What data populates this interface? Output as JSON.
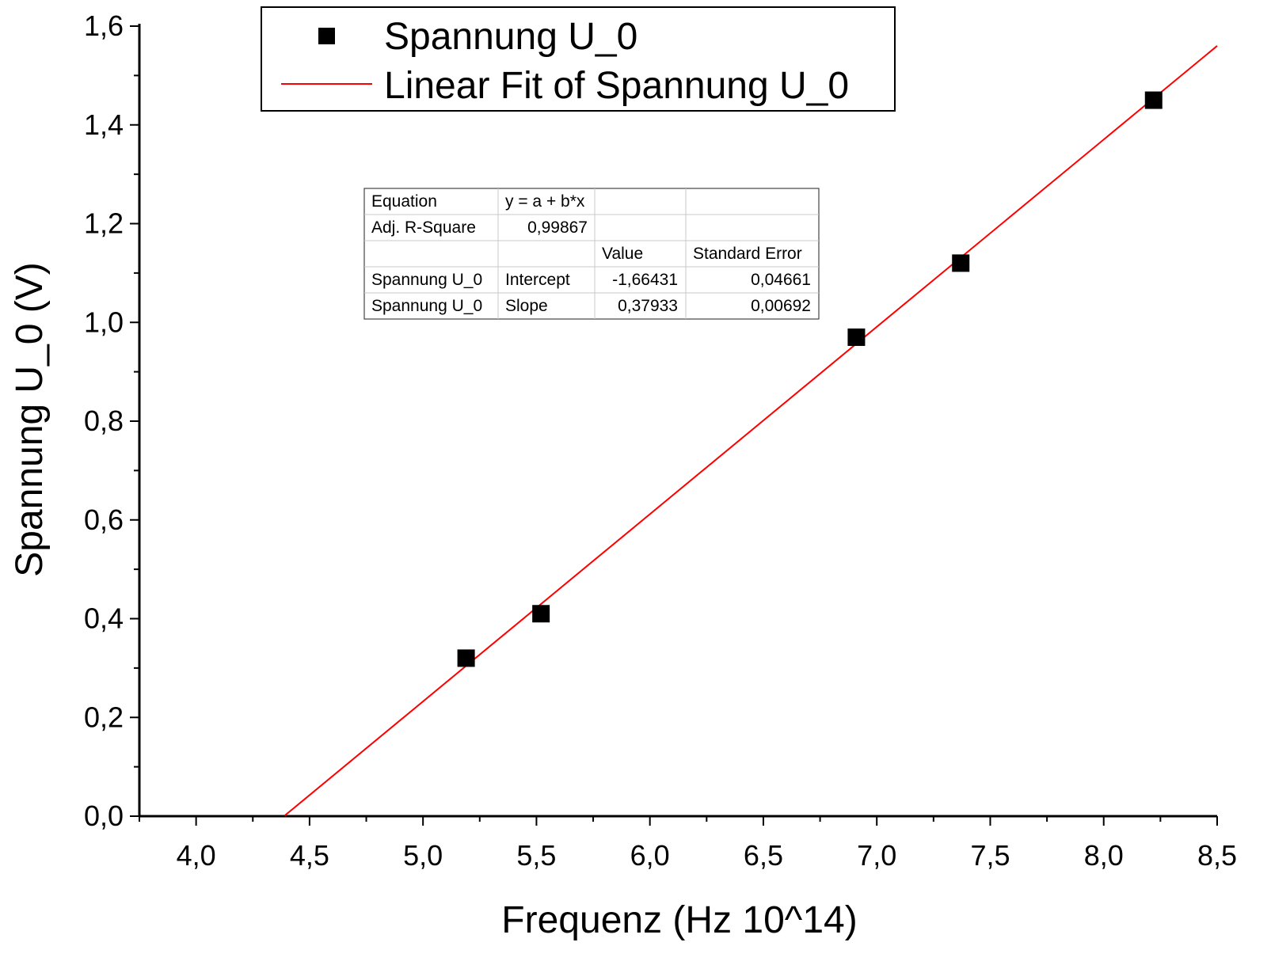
{
  "chart_data": {
    "type": "scatter",
    "xlabel": "Frequenz (Hz 10^14)",
    "ylabel": "Spannung U_0 (V)",
    "xlim": [
      3.75,
      8.5
    ],
    "ylim": [
      0.0,
      1.6
    ],
    "x_ticks": [
      4.0,
      4.5,
      5.0,
      5.5,
      6.0,
      6.5,
      7.0,
      7.5,
      8.0,
      8.5
    ],
    "x_tick_labels": [
      "4,0",
      "4,5",
      "5,0",
      "5,5",
      "6,0",
      "6,5",
      "7,0",
      "7,5",
      "8,0",
      "8,5"
    ],
    "y_ticks": [
      0.0,
      0.2,
      0.4,
      0.6,
      0.8,
      1.0,
      1.2,
      1.4,
      1.6
    ],
    "y_tick_labels": [
      "0,0",
      "0,2",
      "0,4",
      "0,6",
      "0,8",
      "1,0",
      "1,2",
      "1,4",
      "1,6"
    ],
    "grid": false,
    "legend_position": "top",
    "series": [
      {
        "name": "Spannung U_0",
        "kind": "scatter",
        "marker": "square",
        "color": "#000000",
        "x": [
          5.19,
          5.52,
          6.91,
          7.37,
          8.22
        ],
        "y": [
          0.32,
          0.41,
          0.97,
          1.12,
          1.45
        ]
      },
      {
        "name": "Linear Fit of Spannung U_0",
        "kind": "line",
        "color": "#ff0000",
        "intercept": -1.66431,
        "slope": 0.37933,
        "x_range": [
          4.39,
          8.5
        ]
      }
    ],
    "fit_table": {
      "rows": [
        [
          "Equation",
          "y = a + b*x",
          "",
          ""
        ],
        [
          "Adj. R-Square",
          "0,99867",
          "",
          ""
        ],
        [
          "",
          "",
          "Value",
          "Standard Error"
        ],
        [
          "Spannung U_0",
          "Intercept",
          "-1,66431",
          "0,04661"
        ],
        [
          "Spannung U_0",
          "Slope",
          "0,37933",
          "0,00692"
        ]
      ]
    }
  }
}
